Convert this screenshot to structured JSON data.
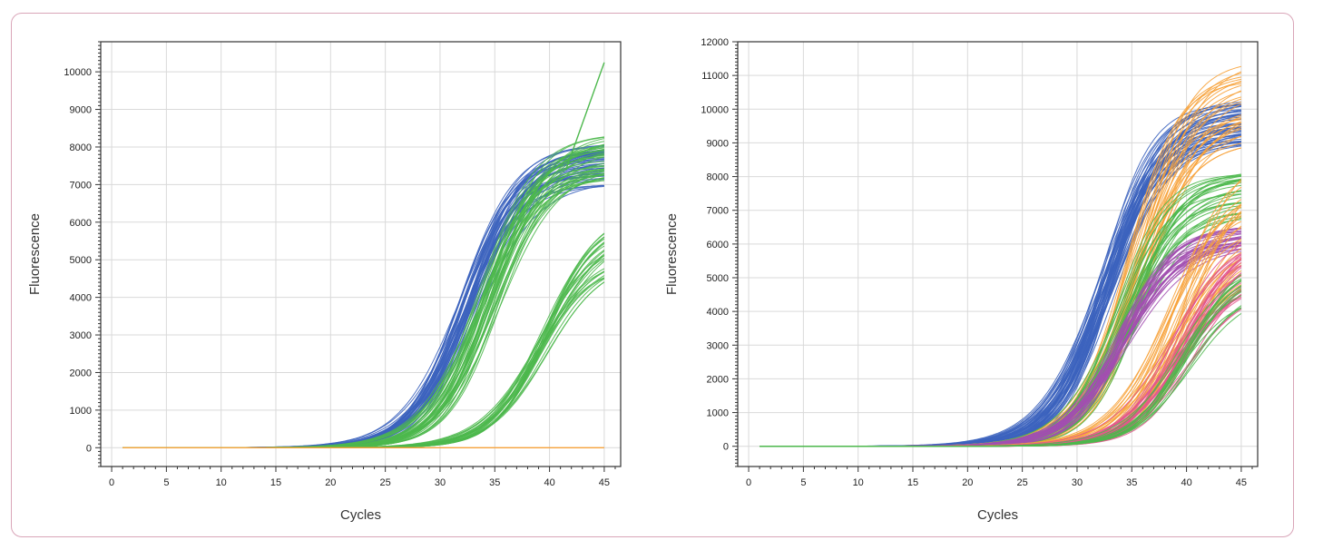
{
  "colors": {
    "blue": "#3c63be",
    "green": "#4cb84c",
    "orange": "#f7a23a",
    "purple": "#a24fb0",
    "pink": "#e2578c",
    "grid": "#d9d9d9",
    "frame": "#d9a5b8"
  },
  "chart_data": [
    {
      "type": "line",
      "title": "",
      "xlabel": "Cycles",
      "ylabel": "Fluorescence",
      "xlim": [
        -1,
        46.5
      ],
      "ylim": [
        -500,
        10800
      ],
      "xticks": [
        0,
        5,
        10,
        15,
        20,
        25,
        30,
        35,
        40,
        45
      ],
      "yticks": [
        0,
        1000,
        2000,
        3000,
        4000,
        5000,
        6000,
        7000,
        8000,
        9000,
        10000
      ],
      "grid": true,
      "legend": "none",
      "x_range": [
        1,
        45
      ],
      "series": [
        {
          "group": "blue-curves",
          "color_key": "blue",
          "count": 45,
          "plateau": [
            7000,
            8100
          ],
          "midpoint_cycle": [
            31.5,
            33.5
          ]
        },
        {
          "group": "green-curves-early",
          "color_key": "green",
          "count": 40,
          "plateau": [
            7000,
            8400
          ],
          "midpoint_cycle": [
            33.5,
            35.5
          ]
        },
        {
          "group": "green-curves-late",
          "color_key": "green",
          "count": 28,
          "plateau": [
            4800,
            6300
          ],
          "midpoint_cycle": [
            38.8,
            40.0
          ]
        },
        {
          "group": "green-outlier-line",
          "color_key": "green",
          "points": [
            [
              41.5,
              7400
            ],
            [
              45,
              10250
            ]
          ]
        },
        {
          "group": "orange-baseline",
          "color_key": "orange",
          "points": [
            [
              1,
              0
            ],
            [
              45,
              0
            ]
          ]
        }
      ]
    },
    {
      "type": "line",
      "title": "",
      "xlabel": "Cycles",
      "ylabel": "Fluorescence",
      "xlim": [
        -1,
        46.5
      ],
      "ylim": [
        -600,
        12000
      ],
      "xticks": [
        0,
        5,
        10,
        15,
        20,
        25,
        30,
        35,
        40,
        45
      ],
      "yticks": [
        0,
        1000,
        2000,
        3000,
        4000,
        5000,
        6000,
        7000,
        8000,
        9000,
        10000,
        11000,
        12000
      ],
      "grid": true,
      "legend": "none",
      "x_range": [
        1,
        45
      ],
      "series": [
        {
          "group": "blue-curves",
          "color_key": "blue",
          "count": 50,
          "plateau": [
            9000,
            10300
          ],
          "midpoint_cycle": [
            32.0,
            33.5
          ]
        },
        {
          "group": "orange-curves-early",
          "color_key": "orange",
          "count": 30,
          "plateau": [
            9000,
            11500
          ],
          "midpoint_cycle": [
            34.5,
            36.5
          ]
        },
        {
          "group": "green-curves",
          "color_key": "green",
          "count": 30,
          "plateau": [
            6800,
            8200
          ],
          "midpoint_cycle": [
            33.5,
            35.5
          ]
        },
        {
          "group": "purple-curves",
          "color_key": "purple",
          "count": 30,
          "plateau": [
            5900,
            6600
          ],
          "midpoint_cycle": [
            33.5,
            34.8
          ]
        },
        {
          "group": "orange-curves-late",
          "color_key": "orange",
          "count": 35,
          "plateau": [
            5000,
            9000
          ],
          "midpoint_cycle": [
            38.0,
            40.5
          ]
        },
        {
          "group": "pink-curves",
          "color_key": "pink",
          "count": 30,
          "plateau": [
            4700,
            6500
          ],
          "midpoint_cycle": [
            38.5,
            40.5
          ]
        },
        {
          "group": "green-curves-late",
          "color_key": "green",
          "count": 15,
          "plateau": [
            4500,
            6000
          ],
          "midpoint_cycle": [
            39.0,
            40.5
          ]
        }
      ]
    }
  ]
}
